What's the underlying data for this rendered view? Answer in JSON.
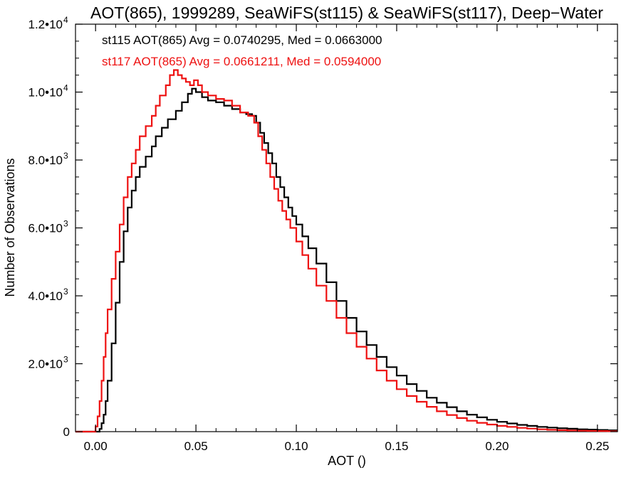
{
  "chart_data": {
    "type": "line",
    "title": "AOT(865), 1999289, SeaWiFS(st115) & SeaWiFS(st117), Deep−Water",
    "xlabel": "AOT ()",
    "ylabel": "Number of Observations",
    "xlim": [
      -0.01,
      0.26
    ],
    "ylim": [
      0,
      12000
    ],
    "x_ticks": [
      {
        "value": 0.0,
        "label": "0.00"
      },
      {
        "value": 0.05,
        "label": "0.05"
      },
      {
        "value": 0.1,
        "label": "0.10"
      },
      {
        "value": 0.15,
        "label": "0.15"
      },
      {
        "value": 0.2,
        "label": "0.20"
      },
      {
        "value": 0.25,
        "label": "0.25"
      }
    ],
    "y_ticks": [
      {
        "value": 0,
        "mant": "0",
        "exp": ""
      },
      {
        "value": 2000,
        "mant": "2.0•10",
        "exp": "3"
      },
      {
        "value": 4000,
        "mant": "4.0•10",
        "exp": "3"
      },
      {
        "value": 6000,
        "mant": "6.0•10",
        "exp": "3"
      },
      {
        "value": 8000,
        "mant": "8.0•10",
        "exp": "3"
      },
      {
        "value": 10000,
        "mant": "1.0•10",
        "exp": "4"
      },
      {
        "value": 12000,
        "mant": "1.2•10",
        "exp": "4"
      }
    ],
    "grid": false,
    "legend_position": "top-left",
    "series": [
      {
        "name": "st115",
        "legend": "st115 AOT(865) Avg = 0.0740295, Med = 0.0663000",
        "color": "#000000",
        "style": "step",
        "points": [
          [
            -0.01,
            0
          ],
          [
            0.001,
            0
          ],
          [
            0.002,
            80
          ],
          [
            0.003,
            250
          ],
          [
            0.004,
            500
          ],
          [
            0.005,
            900
          ],
          [
            0.006,
            1500
          ],
          [
            0.008,
            2600
          ],
          [
            0.01,
            3800
          ],
          [
            0.012,
            5000
          ],
          [
            0.014,
            5900
          ],
          [
            0.016,
            6600
          ],
          [
            0.018,
            7100
          ],
          [
            0.02,
            7500
          ],
          [
            0.022,
            7800
          ],
          [
            0.025,
            8100
          ],
          [
            0.028,
            8400
          ],
          [
            0.03,
            8700
          ],
          [
            0.033,
            8950
          ],
          [
            0.036,
            9200
          ],
          [
            0.04,
            9450
          ],
          [
            0.043,
            9700
          ],
          [
            0.046,
            9950
          ],
          [
            0.048,
            10100
          ],
          [
            0.05,
            10000
          ],
          [
            0.053,
            9850
          ],
          [
            0.056,
            9750
          ],
          [
            0.06,
            9700
          ],
          [
            0.064,
            9600
          ],
          [
            0.068,
            9500
          ],
          [
            0.072,
            9400
          ],
          [
            0.075,
            9350
          ],
          [
            0.078,
            9300
          ],
          [
            0.08,
            9100
          ],
          [
            0.082,
            8800
          ],
          [
            0.084,
            8500
          ],
          [
            0.086,
            8200
          ],
          [
            0.088,
            7900
          ],
          [
            0.09,
            7500
          ],
          [
            0.092,
            7200
          ],
          [
            0.094,
            6900
          ],
          [
            0.096,
            6600
          ],
          [
            0.098,
            6350
          ],
          [
            0.1,
            6100
          ],
          [
            0.103,
            5750
          ],
          [
            0.106,
            5400
          ],
          [
            0.11,
            4950
          ],
          [
            0.115,
            4400
          ],
          [
            0.12,
            3850
          ],
          [
            0.125,
            3350
          ],
          [
            0.13,
            2950
          ],
          [
            0.135,
            2550
          ],
          [
            0.14,
            2200
          ],
          [
            0.145,
            1900
          ],
          [
            0.15,
            1650
          ],
          [
            0.155,
            1400
          ],
          [
            0.16,
            1200
          ],
          [
            0.165,
            1000
          ],
          [
            0.17,
            850
          ],
          [
            0.175,
            720
          ],
          [
            0.18,
            600
          ],
          [
            0.185,
            500
          ],
          [
            0.19,
            420
          ],
          [
            0.195,
            350
          ],
          [
            0.2,
            290
          ],
          [
            0.205,
            240
          ],
          [
            0.21,
            200
          ],
          [
            0.215,
            170
          ],
          [
            0.22,
            140
          ],
          [
            0.225,
            120
          ],
          [
            0.23,
            100
          ],
          [
            0.235,
            85
          ],
          [
            0.24,
            70
          ],
          [
            0.245,
            60
          ],
          [
            0.25,
            50
          ],
          [
            0.255,
            40
          ],
          [
            0.26,
            40
          ]
        ]
      },
      {
        "name": "st117",
        "legend": "st117 AOT(865) Avg = 0.0661211, Med = 0.0594000",
        "color": "#ee1111",
        "style": "step",
        "points": [
          [
            -0.01,
            0
          ],
          [
            -0.001,
            0
          ],
          [
            0.0,
            150
          ],
          [
            0.001,
            450
          ],
          [
            0.002,
            900
          ],
          [
            0.003,
            1500
          ],
          [
            0.004,
            2200
          ],
          [
            0.005,
            2900
          ],
          [
            0.006,
            3600
          ],
          [
            0.008,
            4500
          ],
          [
            0.01,
            5300
          ],
          [
            0.012,
            6100
          ],
          [
            0.014,
            6900
          ],
          [
            0.016,
            7500
          ],
          [
            0.018,
            7900
          ],
          [
            0.02,
            8300
          ],
          [
            0.022,
            8700
          ],
          [
            0.025,
            9000
          ],
          [
            0.028,
            9300
          ],
          [
            0.03,
            9600
          ],
          [
            0.032,
            9900
          ],
          [
            0.035,
            10200
          ],
          [
            0.037,
            10500
          ],
          [
            0.039,
            10650
          ],
          [
            0.041,
            10500
          ],
          [
            0.043,
            10400
          ],
          [
            0.045,
            10300
          ],
          [
            0.047,
            10200
          ],
          [
            0.049,
            10350
          ],
          [
            0.051,
            10200
          ],
          [
            0.053,
            10000
          ],
          [
            0.056,
            9900
          ],
          [
            0.06,
            9800
          ],
          [
            0.064,
            9750
          ],
          [
            0.068,
            9600
          ],
          [
            0.072,
            9400
          ],
          [
            0.076,
            9300
          ],
          [
            0.079,
            9100
          ],
          [
            0.081,
            8700
          ],
          [
            0.083,
            8300
          ],
          [
            0.085,
            7900
          ],
          [
            0.087,
            7500
          ],
          [
            0.089,
            7150
          ],
          [
            0.091,
            6800
          ],
          [
            0.093,
            6500
          ],
          [
            0.095,
            6250
          ],
          [
            0.097,
            6000
          ],
          [
            0.1,
            5600
          ],
          [
            0.103,
            5200
          ],
          [
            0.106,
            4800
          ],
          [
            0.11,
            4300
          ],
          [
            0.115,
            3850
          ],
          [
            0.12,
            3350
          ],
          [
            0.125,
            2900
          ],
          [
            0.13,
            2500
          ],
          [
            0.135,
            2150
          ],
          [
            0.14,
            1800
          ],
          [
            0.145,
            1500
          ],
          [
            0.15,
            1250
          ],
          [
            0.155,
            1050
          ],
          [
            0.16,
            880
          ],
          [
            0.165,
            730
          ],
          [
            0.17,
            600
          ],
          [
            0.175,
            490
          ],
          [
            0.18,
            400
          ],
          [
            0.185,
            320
          ],
          [
            0.19,
            260
          ],
          [
            0.195,
            210
          ],
          [
            0.2,
            170
          ],
          [
            0.205,
            140
          ],
          [
            0.21,
            110
          ],
          [
            0.215,
            90
          ],
          [
            0.22,
            70
          ],
          [
            0.225,
            55
          ],
          [
            0.23,
            45
          ],
          [
            0.235,
            35
          ],
          [
            0.24,
            28
          ],
          [
            0.245,
            22
          ],
          [
            0.25,
            18
          ],
          [
            0.255,
            15
          ],
          [
            0.26,
            15
          ]
        ]
      }
    ]
  }
}
